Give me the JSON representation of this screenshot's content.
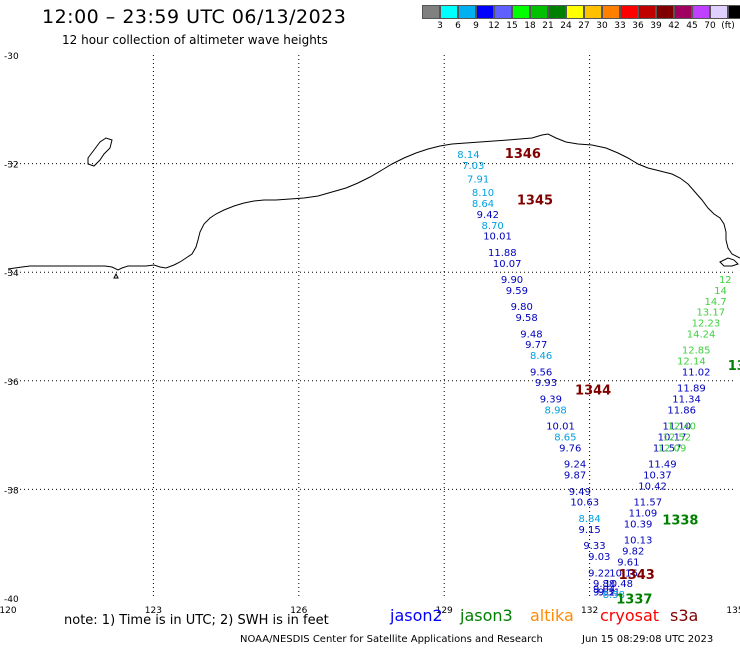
{
  "title": "12:00 – 23:59 UTC 06/13/2023",
  "subtitle": "12 hour collection of altimeter wave heights",
  "legend": {
    "colors": [
      "#808080",
      "#00ffff",
      "#00b0f0",
      "#0000ff",
      "#6060ff",
      "#00ff00",
      "#00c000",
      "#008000",
      "#ffff00",
      "#ffc000",
      "#ff8000",
      "#ff0000",
      "#c00000",
      "#800000",
      "#a00060",
      "#c040ff",
      "#e0d0ff",
      "#000000"
    ],
    "labels": [
      "3",
      "6",
      "9",
      "12",
      "15",
      "18",
      "21",
      "24",
      "27",
      "30",
      "33",
      "36",
      "39",
      "42",
      "45",
      "70",
      "(ft)"
    ]
  },
  "map": {
    "x_ticks": [
      "120",
      "123",
      "126",
      "129",
      "132",
      "135"
    ],
    "y_ticks": [
      "-30",
      "-32",
      "-34",
      "-36",
      "-38",
      "-40"
    ],
    "lon_range": [
      120,
      135
    ],
    "lat_range": [
      -40,
      -30
    ],
    "jason2_color": "#0000c0",
    "jason2_light_color": "#00a0e0",
    "jason3_color": "#40d040",
    "jason3_dark_color": "#008000",
    "time_color": "#800000",
    "jason2_track": [
      {
        "lon": 129.5,
        "lat": -31.9,
        "v": "8.14",
        "c": "light"
      },
      {
        "lon": 129.6,
        "lat": -32.1,
        "v": "7.03",
        "c": "light"
      },
      {
        "lon": 129.7,
        "lat": -32.35,
        "v": "7.91",
        "c": "light"
      },
      {
        "lon": 129.8,
        "lat": -32.6,
        "v": "8.10",
        "c": "light"
      },
      {
        "lon": 129.8,
        "lat": -32.8,
        "v": "8.64",
        "c": "light"
      },
      {
        "lon": 129.9,
        "lat": -33.0,
        "v": "9.42",
        "c": "dark"
      },
      {
        "lon": 130.0,
        "lat": -33.2,
        "v": "8.70",
        "c": "light"
      },
      {
        "lon": 130.1,
        "lat": -33.4,
        "v": "10.01",
        "c": "dark"
      },
      {
        "lon": 130.2,
        "lat": -33.7,
        "v": "11.88",
        "c": "dark"
      },
      {
        "lon": 130.3,
        "lat": -33.9,
        "v": "10.07",
        "c": "dark"
      },
      {
        "lon": 130.4,
        "lat": -34.2,
        "v": "9.90",
        "c": "dark"
      },
      {
        "lon": 130.5,
        "lat": -34.4,
        "v": "9.59",
        "c": "dark"
      },
      {
        "lon": 130.6,
        "lat": -34.7,
        "v": "9.80",
        "c": "dark"
      },
      {
        "lon": 130.7,
        "lat": -34.9,
        "v": "9.58",
        "c": "dark"
      },
      {
        "lon": 130.8,
        "lat": -35.2,
        "v": "9.48",
        "c": "dark"
      },
      {
        "lon": 130.9,
        "lat": -35.4,
        "v": "9.77",
        "c": "dark"
      },
      {
        "lon": 131.0,
        "lat": -35.6,
        "v": "8.46",
        "c": "light"
      },
      {
        "lon": 131.0,
        "lat": -35.9,
        "v": "9.56",
        "c": "dark"
      },
      {
        "lon": 131.1,
        "lat": -36.1,
        "v": "9.93",
        "c": "dark"
      },
      {
        "lon": 131.2,
        "lat": -36.4,
        "v": "9.39",
        "c": "dark"
      },
      {
        "lon": 131.3,
        "lat": -36.6,
        "v": "8.98",
        "c": "light"
      },
      {
        "lon": 131.4,
        "lat": -36.9,
        "v": "10.01",
        "c": "dark"
      },
      {
        "lon": 131.5,
        "lat": -37.1,
        "v": "8.65",
        "c": "light"
      },
      {
        "lon": 131.6,
        "lat": -37.3,
        "v": "9.76",
        "c": "dark"
      },
      {
        "lon": 131.7,
        "lat": -37.6,
        "v": "9.24",
        "c": "dark"
      },
      {
        "lon": 131.7,
        "lat": -37.8,
        "v": "9.87",
        "c": "dark"
      },
      {
        "lon": 131.8,
        "lat": -38.1,
        "v": "9.49",
        "c": "dark"
      },
      {
        "lon": 131.9,
        "lat": -38.3,
        "v": "10.63",
        "c": "dark"
      },
      {
        "lon": 132.0,
        "lat": -38.6,
        "v": "8.84",
        "c": "light"
      },
      {
        "lon": 132.0,
        "lat": -38.8,
        "v": "9.15",
        "c": "dark"
      },
      {
        "lon": 132.1,
        "lat": -39.1,
        "v": "9.33",
        "c": "dark"
      },
      {
        "lon": 132.2,
        "lat": -39.3,
        "v": "9.03",
        "c": "dark"
      },
      {
        "lon": 132.2,
        "lat": -39.6,
        "v": "9.22",
        "c": "dark"
      },
      {
        "lon": 132.3,
        "lat": -39.8,
        "v": "9.88",
        "c": "dark"
      },
      {
        "lon": 132.3,
        "lat": -39.9,
        "v": "9.04",
        "c": "dark"
      },
      {
        "lon": 132.3,
        "lat": -39.95,
        "v": "9.52",
        "c": "dark"
      },
      {
        "lon": 132.4,
        "lat": -39.95,
        "v": "9.31",
        "c": "dark"
      },
      {
        "lon": 132.5,
        "lat": -40.0,
        "v": "8.58",
        "c": "light"
      },
      {
        "lon": 132.6,
        "lat": -39.8,
        "v": "10.48",
        "c": "dark"
      },
      {
        "lon": 132.7,
        "lat": -39.6,
        "v": "10.16",
        "c": "dark"
      },
      {
        "lon": 132.8,
        "lat": -39.4,
        "v": "9.61",
        "c": "dark"
      },
      {
        "lon": 132.9,
        "lat": -39.2,
        "v": "9.82",
        "c": "dark"
      },
      {
        "lon": 133.0,
        "lat": -39.0,
        "v": "10.13",
        "c": "dark"
      },
      {
        "lon": 133.0,
        "lat": -38.7,
        "v": "10.39",
        "c": "dark"
      },
      {
        "lon": 133.1,
        "lat": -38.5,
        "v": "11.09",
        "c": "dark"
      },
      {
        "lon": 133.2,
        "lat": -38.3,
        "v": "11.57",
        "c": "dark"
      },
      {
        "lon": 133.3,
        "lat": -38.0,
        "v": "10.42",
        "c": "dark"
      },
      {
        "lon": 133.4,
        "lat": -37.8,
        "v": "10.37",
        "c": "dark"
      },
      {
        "lon": 133.5,
        "lat": -37.6,
        "v": "11.49",
        "c": "dark"
      },
      {
        "lon": 133.6,
        "lat": -37.3,
        "v": "11.57",
        "c": "dark"
      },
      {
        "lon": 133.7,
        "lat": -37.1,
        "v": "10.17",
        "c": "dark"
      },
      {
        "lon": 133.8,
        "lat": -36.9,
        "v": "11.10",
        "c": "dark"
      },
      {
        "lon": 133.9,
        "lat": -36.6,
        "v": "11.86",
        "c": "dark"
      },
      {
        "lon": 134.0,
        "lat": -36.4,
        "v": "11.34",
        "c": "dark"
      },
      {
        "lon": 134.1,
        "lat": -36.2,
        "v": "11.89",
        "c": "dark"
      },
      {
        "lon": 134.2,
        "lat": -35.9,
        "v": "11.02",
        "c": "dark"
      }
    ],
    "jason3_track": [
      {
        "lon": 133.7,
        "lat": -37.3,
        "v": "12.09"
      },
      {
        "lon": 133.8,
        "lat": -37.1,
        "v": "12.52"
      },
      {
        "lon": 133.9,
        "lat": -36.9,
        "v": "12.40"
      },
      {
        "lon": 134.1,
        "lat": -35.7,
        "v": "12.14"
      },
      {
        "lon": 134.2,
        "lat": -35.5,
        "v": "12.85"
      },
      {
        "lon": 134.3,
        "lat": -35.2,
        "v": "14.24"
      },
      {
        "lon": 134.4,
        "lat": -35.0,
        "v": "12.23"
      },
      {
        "lon": 134.5,
        "lat": -34.8,
        "v": "13.17"
      },
      {
        "lon": 134.6,
        "lat": -34.6,
        "v": "14.7"
      },
      {
        "lon": 134.7,
        "lat": -34.4,
        "v": "14"
      },
      {
        "lon": 134.8,
        "lat": -34.2,
        "v": "12"
      }
    ],
    "pass_times": [
      {
        "lon": 130.25,
        "lat": -31.9,
        "t": "1346",
        "sat": "time"
      },
      {
        "lon": 130.5,
        "lat": -32.75,
        "t": "1345",
        "sat": "time"
      },
      {
        "lon": 131.7,
        "lat": -36.25,
        "t": "1344",
        "sat": "time"
      },
      {
        "lon": 132.6,
        "lat": -39.65,
        "t": "1343",
        "sat": "time"
      },
      {
        "lon": 132.55,
        "lat": -40.1,
        "t": "1337",
        "sat": "j3"
      },
      {
        "lon": 133.5,
        "lat": -38.65,
        "t": "1338",
        "sat": "j3"
      },
      {
        "lon": 134.85,
        "lat": -35.8,
        "t": "13",
        "sat": "j3"
      }
    ]
  },
  "note": "note: 1) Time is in UTC; 2) SWH is in feet",
  "satellites": [
    {
      "name": "jason2",
      "color": "#0000ff"
    },
    {
      "name": "jason3",
      "color": "#008000"
    },
    {
      "name": "altika",
      "color": "#ff8c00"
    },
    {
      "name": "cryosat",
      "color": "#ff0000"
    },
    {
      "name": "s3a",
      "color": "#800000"
    }
  ],
  "credit": "NOAA/NESDIS Center for Satellite Applications and Research",
  "timestamp": "Jun 15 08:29:08 UTC 2023"
}
